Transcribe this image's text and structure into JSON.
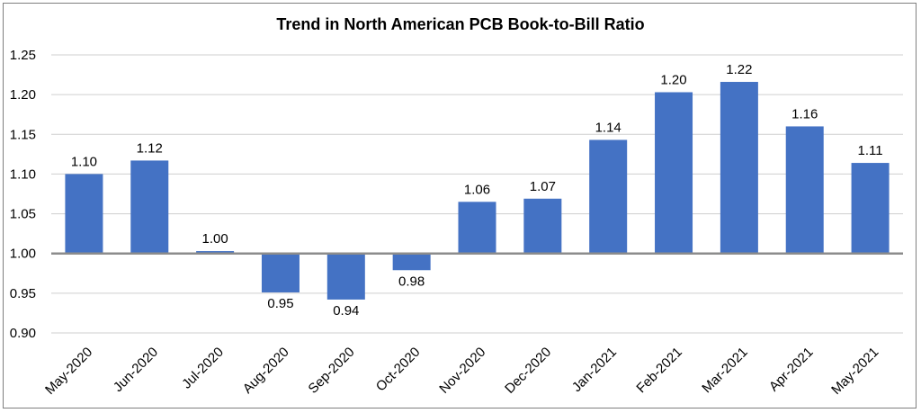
{
  "chart_data": {
    "type": "bar",
    "title": "Trend in North American PCB Book-to-Bill Ratio",
    "xlabel": "",
    "ylabel": "",
    "categories": [
      "May-2020",
      "Jun-2020",
      "Jul-2020",
      "Aug-2020",
      "Sep-2020",
      "Oct-2020",
      "Nov-2020",
      "Dec-2020",
      "Jan-2021",
      "Feb-2021",
      "Mar-2021",
      "Apr-2021",
      "May-2021"
    ],
    "values": [
      1.1,
      1.117,
      1.003,
      0.951,
      0.942,
      0.979,
      1.065,
      1.069,
      1.143,
      1.203,
      1.216,
      1.16,
      1.114
    ],
    "data_labels": [
      "1.10",
      "1.12",
      "1.00",
      "0.95",
      "0.94",
      "0.98",
      "1.06",
      "1.07",
      "1.14",
      "1.20",
      "1.22",
      "1.16",
      "1.11"
    ],
    "baseline": 1.0,
    "ylim": [
      0.9,
      1.25
    ],
    "yticks": [
      "0.90",
      "0.95",
      "1.00",
      "1.05",
      "1.10",
      "1.15",
      "1.20",
      "1.25"
    ],
    "bar_color": "#4472c4",
    "grid": true,
    "legend": "none"
  }
}
